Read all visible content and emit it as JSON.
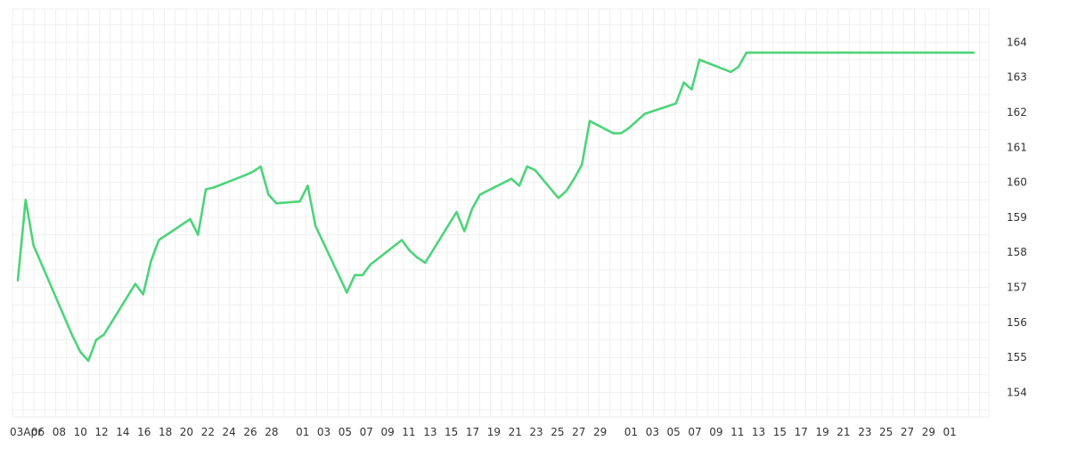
{
  "chart_data": {
    "type": "line",
    "title": "",
    "xlabel": "",
    "ylabel": "",
    "grid": true,
    "y_axis_position": "right",
    "line_color": "#4cd47a",
    "grid_color": "#efefef",
    "ylim": [
      153.3,
      164.95
    ],
    "y_ticks": [
      "154",
      "155",
      "156",
      "157",
      "158",
      "159",
      "160",
      "161",
      "162",
      "163",
      "164"
    ],
    "x_tick_labels": [
      "03Apr",
      "06",
      "08",
      "10",
      "12",
      "14",
      "16",
      "18",
      "20",
      "22",
      "24",
      "26",
      "28",
      "01",
      "03",
      "05",
      "07",
      "09",
      "11",
      "13",
      "15",
      "17",
      "19",
      "21",
      "23",
      "25",
      "27",
      "29",
      "01",
      "03",
      "05",
      "07",
      "09",
      "11",
      "13",
      "15",
      "17",
      "19",
      "21",
      "23",
      "25",
      "27",
      "29",
      "01"
    ],
    "x": [
      "2024-04-02",
      "2024-04-03",
      "2024-04-04",
      "2024-04-09",
      "2024-04-10",
      "2024-04-11",
      "2024-04-12",
      "2024-04-13",
      "2024-04-17",
      "2024-04-18",
      "2024-04-19",
      "2024-04-20",
      "2024-04-24",
      "2024-04-25",
      "2024-04-26",
      "2024-04-27",
      "2024-05-01",
      "2024-05-02",
      "2024-05-03",
      "2024-05-04",
      "2024-05-05",
      "2024-05-08",
      "2024-05-09",
      "2024-05-10",
      "2024-05-14",
      "2024-05-15",
      "2024-05-16",
      "2024-05-17",
      "2024-05-21",
      "2024-05-22",
      "2024-05-23",
      "2024-05-24",
      "2024-05-28",
      "2024-05-29",
      "2024-05-30",
      "2024-05-31",
      "2024-06-04",
      "2024-06-05",
      "2024-06-06",
      "2024-06-07",
      "2024-06-10",
      "2024-06-11",
      "2024-06-12",
      "2024-06-13",
      "2024-06-14",
      "2024-06-17",
      "2024-06-18",
      "2024-06-19",
      "2024-06-20",
      "2024-06-21",
      "2024-06-25",
      "2024-06-26",
      "2024-06-27",
      "2024-06-28",
      "2024-07-02",
      "2024-07-03",
      "2024-07-04",
      "2024-07-05",
      "2024-07-06",
      "2024-07-09",
      "2024-07-10",
      "2024-07-11",
      "2024-07-12",
      "2024-07-13",
      "2024-07-16",
      "2024-07-17",
      "2024-07-18",
      "2024-07-19",
      "2024-07-20",
      "2024-07-23",
      "2024-07-24",
      "2024-07-25",
      "2024-07-26",
      "2024-07-30",
      "2024-07-31",
      "2024-08-01",
      "2024-08-02"
    ],
    "y": [
      157.2,
      159.5,
      158.2,
      155.6,
      155.15,
      154.9,
      155.5,
      155.65,
      157.1,
      156.8,
      157.75,
      158.35,
      158.95,
      158.5,
      159.8,
      159.85,
      160.2,
      160.3,
      160.45,
      159.65,
      159.4,
      159.45,
      159.9,
      158.75,
      156.85,
      157.35,
      157.35,
      157.65,
      158.35,
      158.05,
      157.85,
      157.7,
      159.15,
      158.6,
      159.25,
      159.65,
      160.1,
      159.9,
      160.45,
      160.35,
      159.55,
      159.75,
      160.1,
      160.5,
      161.75,
      161.4,
      161.4,
      161.55,
      161.75,
      161.95,
      162.25,
      162.85,
      162.65,
      163.5,
      163.15,
      163.3,
      163.7,
      163.7,
      163.7,
      163.7,
      163.7,
      163.7,
      163.7,
      163.7,
      163.7,
      163.7,
      163.7,
      163.7,
      163.7,
      163.7,
      163.7,
      163.7,
      163.7,
      163.7,
      163.7,
      163.7,
      163.7
    ]
  }
}
